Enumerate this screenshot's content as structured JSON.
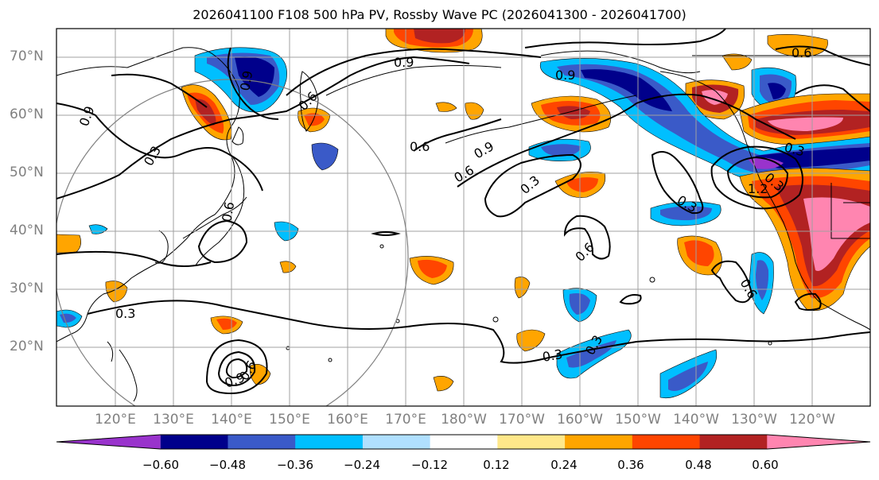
{
  "title": "2026041100 F108 500 hPa PV, Rossby Wave PC (2026041300 - 2026041700)",
  "lat_labels": [
    "70°N",
    "60°N",
    "50°N",
    "40°N",
    "30°N",
    "20°N"
  ],
  "lon_labels": [
    "120°E",
    "130°E",
    "140°E",
    "150°E",
    "160°E",
    "170°E",
    "180°W",
    "170°W",
    "160°W",
    "150°W",
    "140°W",
    "130°W",
    "120°W"
  ],
  "colorbar": {
    "ticks": [
      "−0.60",
      "−0.48",
      "−0.36",
      "−0.24",
      "−0.12",
      "0.12",
      "0.24",
      "0.36",
      "0.48",
      "0.60"
    ],
    "colors": [
      "#9933cc",
      "#00008b",
      "#3a5ac8",
      "#00bfff",
      "#b0e0ff",
      "#ffffff",
      "#ffe88a",
      "#ffa500",
      "#ff4500",
      "#b22222",
      "#ff85b0"
    ]
  },
  "contour_labels": [
    "0.9",
    "0.3",
    "0.9",
    "0.6",
    "0.9",
    "0.6",
    "0.6",
    "0.9",
    "0.3",
    "0.6",
    "0.9",
    "0.3",
    "0.6",
    "0.6",
    "0.3",
    "0.6",
    "0.3",
    "0.6",
    "0.3",
    "0.9",
    "0.3",
    "1.2",
    "0.3"
  ]
}
